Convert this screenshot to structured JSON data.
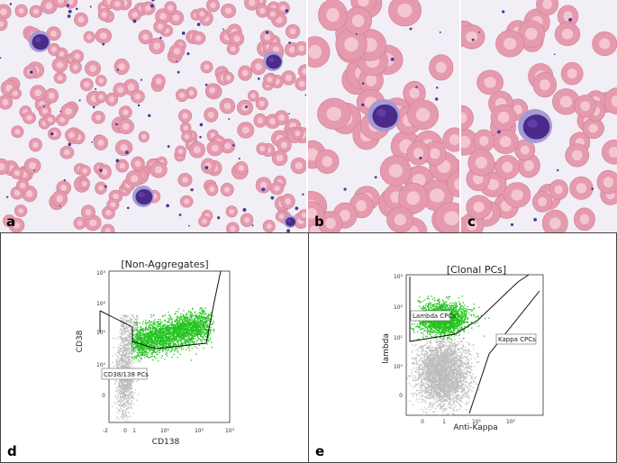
{
  "panels": {
    "a": {
      "letter": "a"
    },
    "b": {
      "letter": "b"
    },
    "c": {
      "letter": "c"
    },
    "d": {
      "letter": "d",
      "plot_title": "[Non-Aggregates]",
      "xlabel": "CD138",
      "ylabel": "CD38",
      "gate_label": "CD38/138 PCs",
      "x_ticks": [
        "-2",
        "0",
        "1",
        "10¹",
        "10²",
        "10³"
      ],
      "y_ticks": [
        "10³",
        "10²",
        "10¹",
        "10⁰",
        "0"
      ]
    },
    "e": {
      "letter": "e",
      "plot_title": "[Clonal PCs]",
      "xlabel": "Anti-Kappa",
      "ylabel": "lambda",
      "gate_lambda_label": "Lambda CPCs",
      "gate_kappa_label": "Kappa CPCs",
      "x_ticks": [
        "0",
        "1",
        "10¹",
        "10²"
      ],
      "y_ticks": [
        "10³",
        "10²",
        "10¹",
        "10⁰",
        "0"
      ]
    }
  },
  "colors": {
    "cell_fill": "#e59aae",
    "cell_center": "#f4c6d1",
    "nucleus": "#4b2a8a",
    "background_smear": "#f2eef5",
    "dots_gray": "#bdbdbd",
    "dots_green": "#22c41e"
  }
}
